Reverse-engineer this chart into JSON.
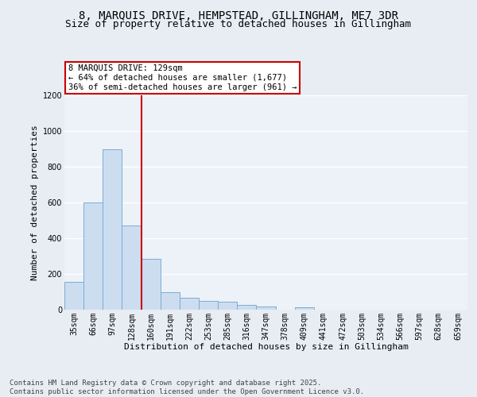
{
  "title1": "8, MARQUIS DRIVE, HEMPSTEAD, GILLINGHAM, ME7 3DR",
  "title2": "Size of property relative to detached houses in Gillingham",
  "xlabel": "Distribution of detached houses by size in Gillingham",
  "ylabel": "Number of detached properties",
  "categories": [
    "35sqm",
    "66sqm",
    "97sqm",
    "128sqm",
    "160sqm",
    "191sqm",
    "222sqm",
    "253sqm",
    "285sqm",
    "316sqm",
    "347sqm",
    "378sqm",
    "409sqm",
    "441sqm",
    "472sqm",
    "503sqm",
    "534sqm",
    "566sqm",
    "597sqm",
    "628sqm",
    "659sqm"
  ],
  "values": [
    155,
    600,
    900,
    470,
    285,
    100,
    65,
    50,
    45,
    25,
    20,
    0,
    15,
    0,
    0,
    0,
    0,
    0,
    0,
    0,
    0
  ],
  "bar_color": "#ccddf0",
  "bar_edge_color": "#7aadd4",
  "vline_x": 3,
  "vline_color": "#cc0000",
  "annotation_text": "8 MARQUIS DRIVE: 129sqm\n← 64% of detached houses are smaller (1,677)\n36% of semi-detached houses are larger (961) →",
  "annotation_box_color": "#ffffff",
  "annotation_edge_color": "#cc0000",
  "ylim": [
    0,
    1200
  ],
  "yticks": [
    0,
    200,
    400,
    600,
    800,
    1000,
    1200
  ],
  "background_color": "#e8edf4",
  "plot_bg_color": "#edf1f8",
  "grid_color": "#ffffff",
  "footer": "Contains HM Land Registry data © Crown copyright and database right 2025.\nContains public sector information licensed under the Open Government Licence v3.0.",
  "title1_fontsize": 10,
  "title2_fontsize": 9,
  "xlabel_fontsize": 8,
  "ylabel_fontsize": 8,
  "tick_fontsize": 7,
  "footer_fontsize": 6.5,
  "annot_fontsize": 7.5
}
